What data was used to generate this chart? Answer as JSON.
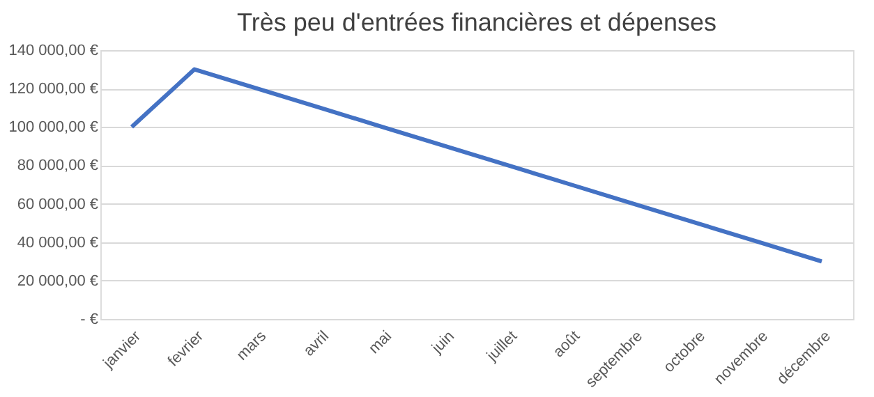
{
  "chart_data": {
    "type": "line",
    "title": "Très peu d'entrées financières et dépenses",
    "categories": [
      "janvier",
      "fevrier",
      "mars",
      "avril",
      "mai",
      "juin",
      "juillet",
      "août",
      "septembre",
      "octobre",
      "novembre",
      "décembre"
    ],
    "series": [
      {
        "color": "#4472c4",
        "values": [
          100000,
          130000,
          120000,
          110000,
          100000,
          90000,
          80000,
          70000,
          60000,
          50000,
          40000,
          30000
        ]
      }
    ],
    "ylim": [
      0,
      140000
    ],
    "yticks": [
      {
        "value": 0,
        "label": "-   €"
      },
      {
        "value": 20000,
        "label": "20 000,00 €"
      },
      {
        "value": 40000,
        "label": "40 000,00 €"
      },
      {
        "value": 60000,
        "label": "60 000,00 €"
      },
      {
        "value": 80000,
        "label": "80 000,00 €"
      },
      {
        "value": 100000,
        "label": "100 000,00 €"
      },
      {
        "value": 120000,
        "label": "120 000,00 €"
      },
      {
        "value": 140000,
        "label": "140 000,00 €"
      }
    ],
    "grid": "y",
    "legend": false,
    "marker": "none",
    "line_style": "solid"
  }
}
